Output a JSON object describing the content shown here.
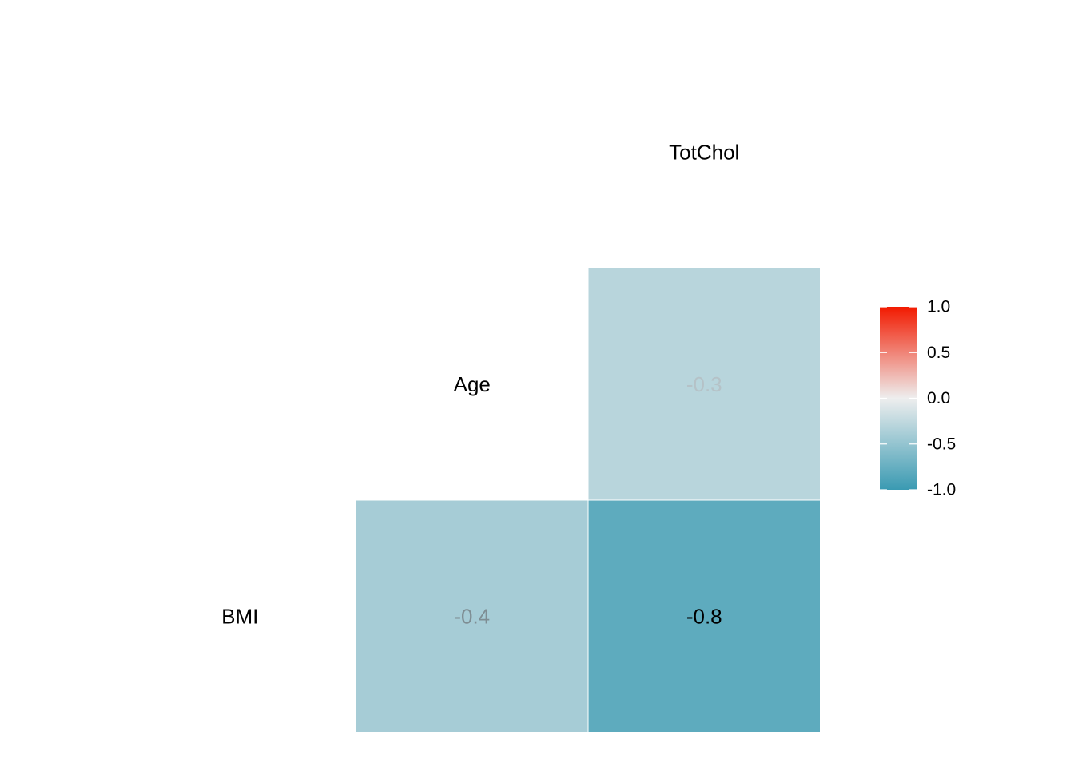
{
  "chart_data": {
    "type": "heatmap",
    "title": "",
    "variables": [
      "BMI",
      "Age",
      "TotChol"
    ],
    "cells": [
      {
        "row": "Age",
        "col": "TotChol",
        "value": -0.3,
        "label": "-0.3",
        "label_color": "#b5c2c7"
      },
      {
        "row": "BMI",
        "col": "Age",
        "value": -0.4,
        "label": "-0.4",
        "label_color": "#7e8d93"
      },
      {
        "row": "BMI",
        "col": "TotChol",
        "value": -0.8,
        "label": "-0.8",
        "label_color": "#000000"
      }
    ],
    "color_scale": {
      "low": "#3a9ab2",
      "mid": "#eeeeee",
      "high": "#f21a00",
      "limits": [
        -1.0,
        1.0
      ]
    },
    "legend": {
      "position": "right",
      "ticks": [
        {
          "value": 1.0,
          "label": "1.0"
        },
        {
          "value": 0.5,
          "label": "0.5"
        },
        {
          "value": 0.0,
          "label": "0.0"
        },
        {
          "value": -0.5,
          "label": "-0.5"
        },
        {
          "value": -1.0,
          "label": "-1.0"
        }
      ]
    },
    "grid": false
  }
}
